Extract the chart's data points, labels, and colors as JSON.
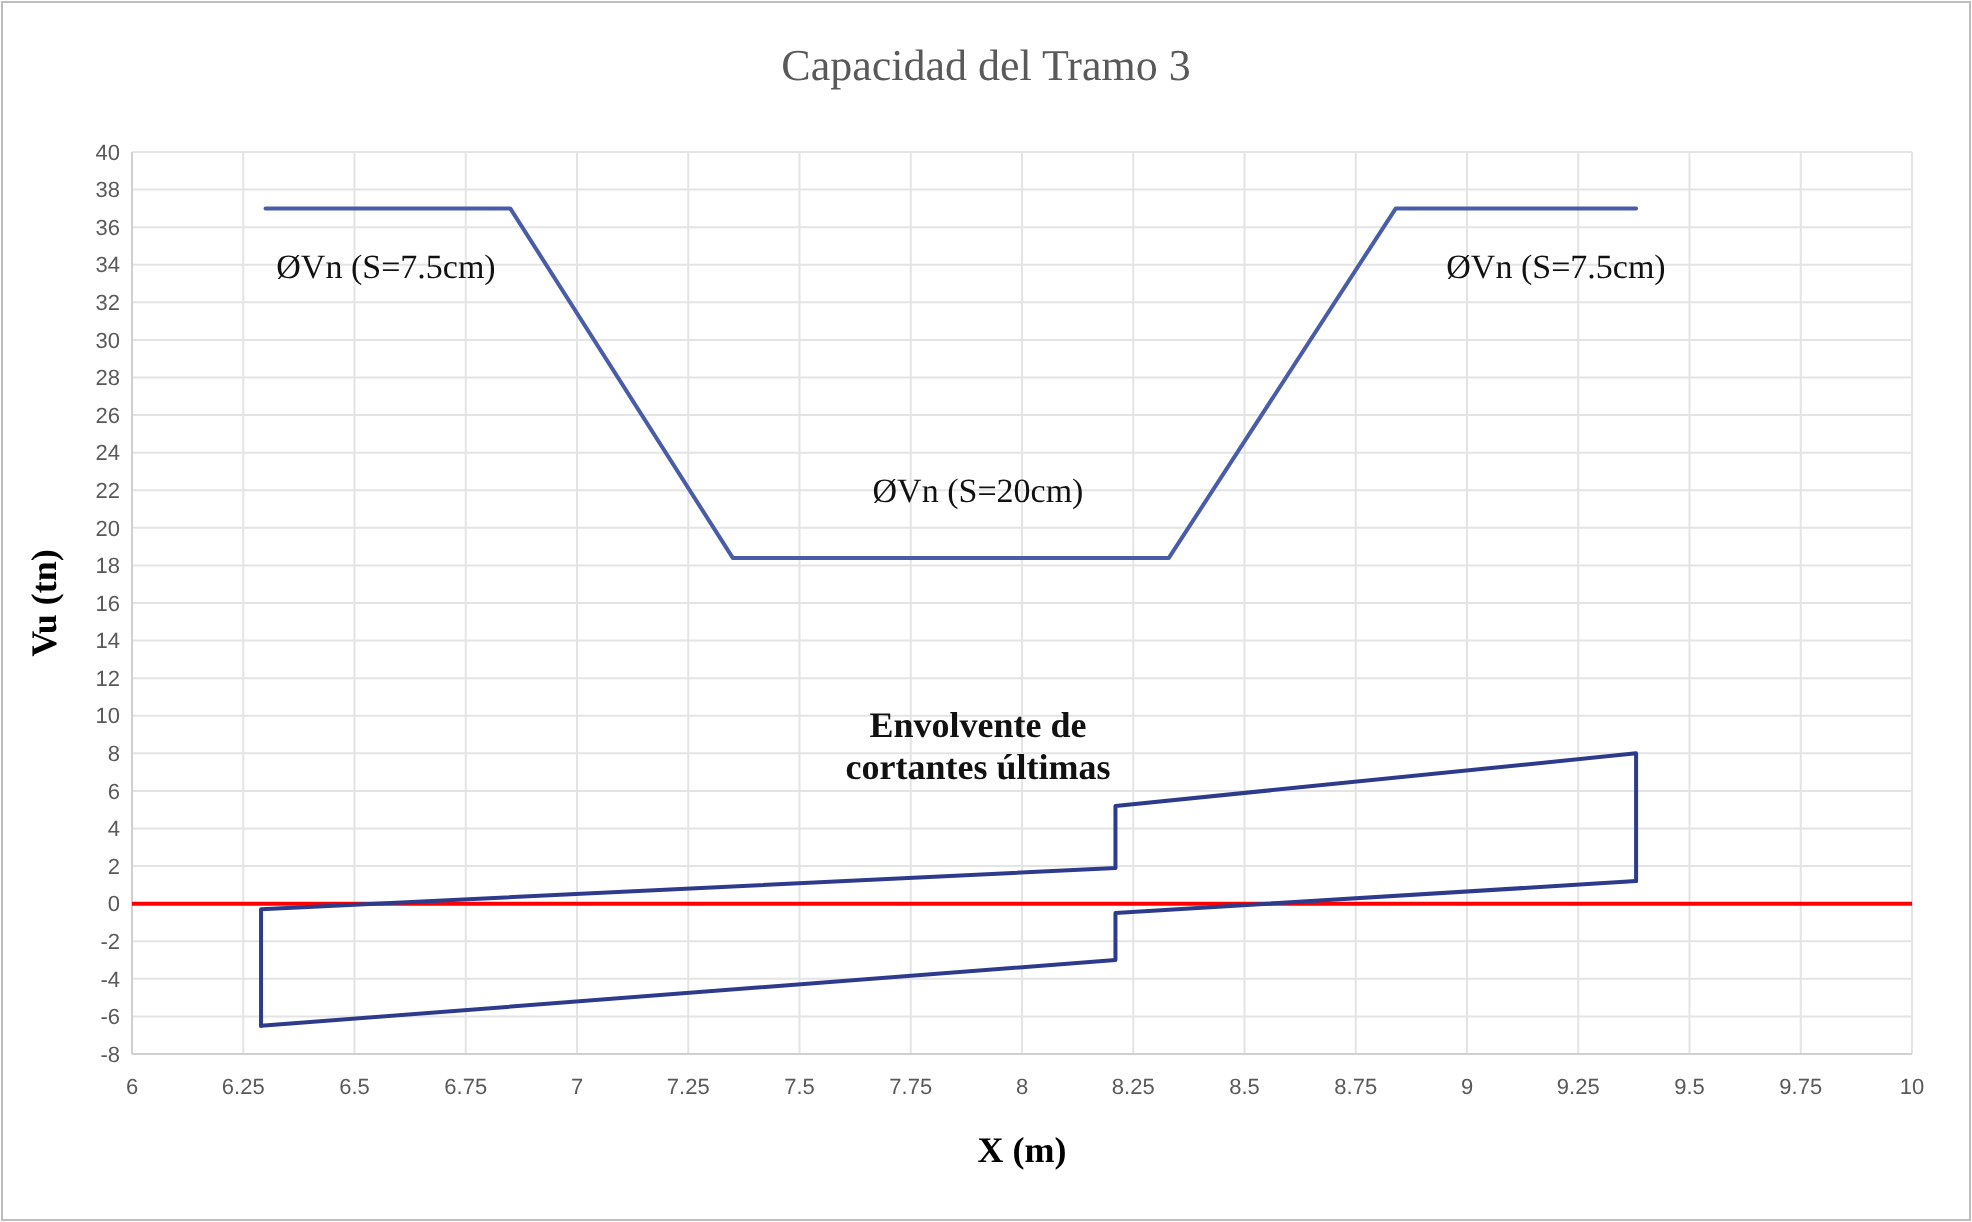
{
  "chart_data": {
    "type": "line",
    "title": "Capacidad del Tramo 3",
    "xlabel": "X (m)",
    "ylabel": "Vu (tn)",
    "series": [
      {
        "color": "#4a5ca8",
        "x": [
          6.3,
          6.85,
          7.35,
          8.33,
          8.84,
          9.38
        ],
        "values": [
          37,
          37,
          18.4,
          18.4,
          37,
          37
        ]
      },
      {
        "color": "#2e3a8c",
        "x": [
          6.29,
          6.29,
          8.21,
          8.21,
          9.38,
          9.38
        ],
        "values": [
          -6.5,
          -0.3,
          1.9,
          5.2,
          8,
          1.2
        ]
      },
      {
        "color": "#2e3a8c",
        "x": [
          6.29,
          8.21,
          8.21,
          9.38
        ],
        "values": [
          -6.5,
          -3,
          -0.5,
          1.2
        ]
      }
    ],
    "xlim": [
      6,
      10
    ],
    "xticks": [
      6,
      6.25,
      6.5,
      6.75,
      7,
      7.25,
      7.5,
      7.75,
      8,
      8.25,
      8.5,
      8.75,
      9,
      9.25,
      9.5,
      9.75,
      10
    ],
    "ylim": [
      -8,
      40
    ],
    "yticks": [
      -8,
      -6,
      -4,
      -2,
      0,
      2,
      4,
      6,
      8,
      10,
      12,
      14,
      16,
      18,
      20,
      22,
      24,
      26,
      28,
      30,
      32,
      34,
      36,
      38,
      40
    ],
    "grid": true,
    "marker": "none",
    "line_style": "solid",
    "ref_lines": [
      {
        "axis": "y",
        "value": 0,
        "color": "#ff0000"
      }
    ],
    "annotations": [
      "ØVn (S=7.5cm)",
      "ØVn (S=7.5cm)",
      "ØVn (S=20cm)",
      "Envolvente de\ncortantes últimas"
    ]
  }
}
